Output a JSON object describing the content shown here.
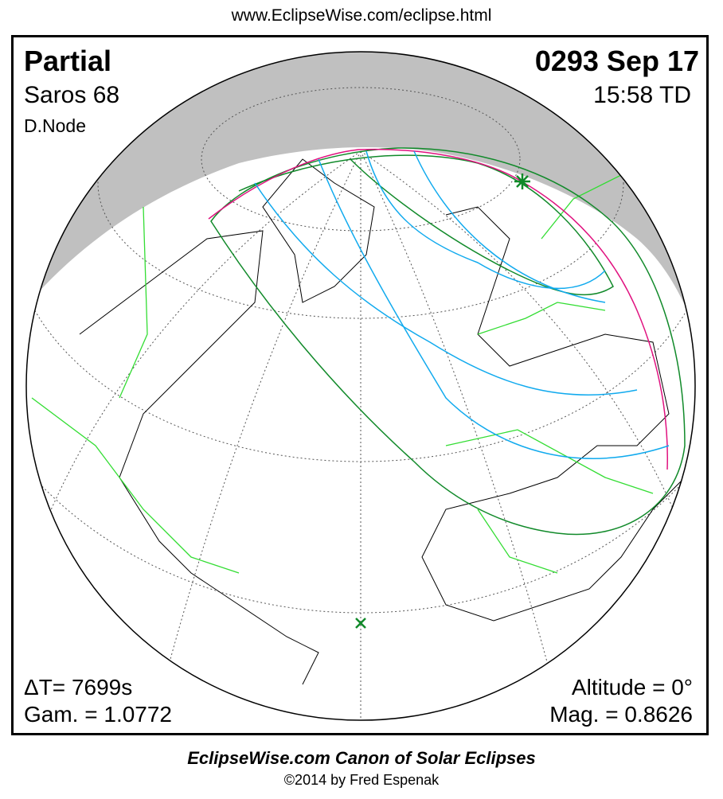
{
  "header": {
    "url": "www.EclipseWise.com/eclipse.html"
  },
  "eclipse": {
    "type": "Partial",
    "saros": "Saros  68",
    "node": "D.Node",
    "date": "0293 Sep 17",
    "time": "15:58 TD",
    "delta_t": "ΔT=   7699s",
    "gamma": "Gam. = 1.0772",
    "altitude": "Altitude =  0°",
    "magnitude": "Mag. = 0.8626"
  },
  "footer": {
    "canon": "EclipseWise.com Canon of Solar Eclipses",
    "copyright": "©2014 by Fred Espenak"
  },
  "colors": {
    "night": "#c0c0c0",
    "borders": "#33dd33",
    "coast": "#000000",
    "max_eclipse_line": "#e0117f",
    "penumbra_limits": "#118a2a",
    "magnitude_curves": "#11aaee",
    "greatest_eclipse_marker": "#118a2a"
  },
  "icons": {
    "greatest_eclipse": "star-marker",
    "sub_solar": "x-marker"
  }
}
